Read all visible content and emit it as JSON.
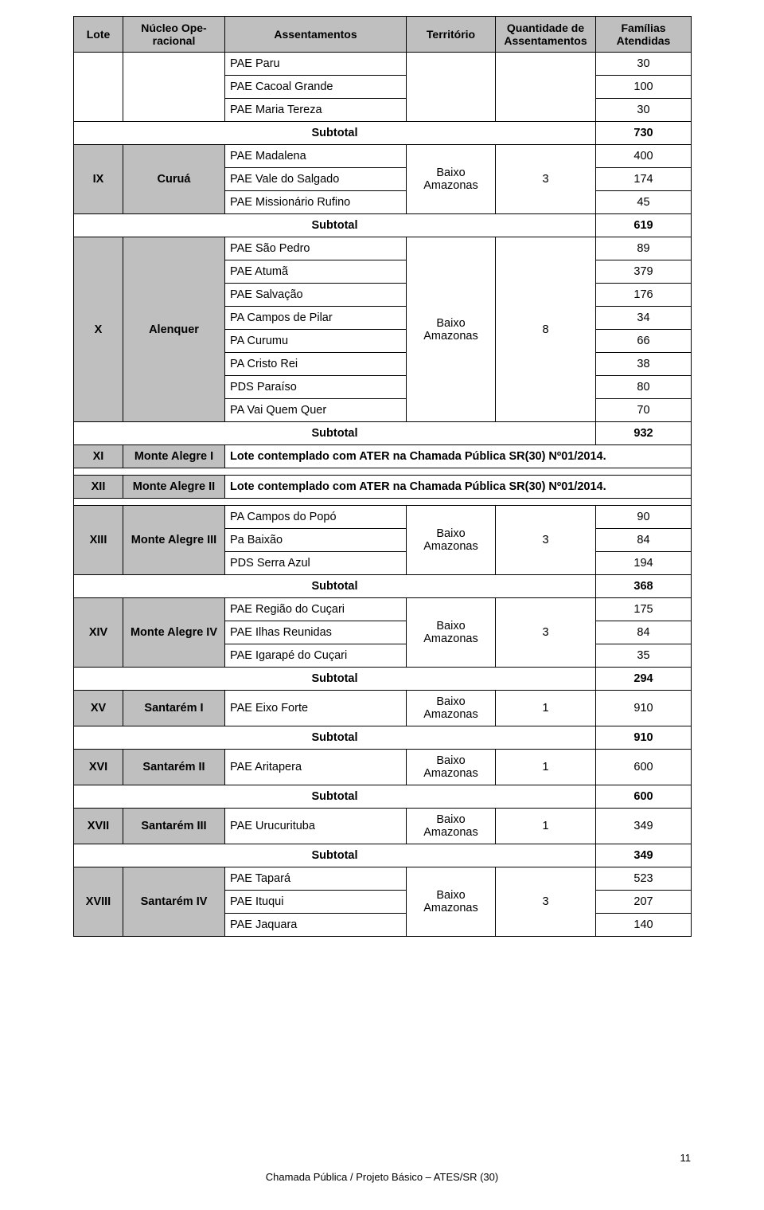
{
  "header": {
    "lote": "Lote",
    "nucleo": "Núcleo Ope-racional",
    "assent": "Assentamentos",
    "territ": "Território",
    "quant": "Quantidade de Assentamentos",
    "familias": "Famílias Atendidas"
  },
  "pre_rows": [
    {
      "name": "PAE Paru",
      "val": "30"
    },
    {
      "name": "PAE Cacoal Grande",
      "val": "100"
    },
    {
      "name": "PAE Maria Tereza",
      "val": "30"
    }
  ],
  "subtotal_label": "Subtotal",
  "sub730": "730",
  "ix": {
    "lote": "IX",
    "nucleo": "Curuá",
    "territory": "Baixo Amazonas",
    "qty": "3",
    "rows": [
      {
        "name": "PAE Madalena",
        "val": "400"
      },
      {
        "name": "PAE Vale do Salgado",
        "val": "174"
      },
      {
        "name": "PAE Missionário Rufino",
        "val": "45"
      }
    ]
  },
  "sub619": "619",
  "x": {
    "lote": "X",
    "nucleo": "Alenquer",
    "territory": "Baixo Amazonas",
    "qty": "8",
    "rows": [
      {
        "name": "PAE São Pedro",
        "val": "89"
      },
      {
        "name": "PAE Atumã",
        "val": "379"
      },
      {
        "name": "PAE Salvação",
        "val": "176"
      },
      {
        "name": "PA Campos de Pilar",
        "val": "34"
      },
      {
        "name": "PA Curumu",
        "val": "66"
      },
      {
        "name": "PA Cristo Rei",
        "val": "38"
      },
      {
        "name": "PDS Paraíso",
        "val": "80"
      },
      {
        "name": "PA Vai Quem Quer",
        "val": "70"
      }
    ]
  },
  "sub932": "932",
  "xi": {
    "lote": "XI",
    "nucleo": "Monte Alegre I",
    "text": "Lote contemplado com ATER na Chamada Pública SR(30) Nº01/2014."
  },
  "xii": {
    "lote": "XII",
    "nucleo": "Monte Alegre II",
    "text": "Lote contemplado com ATER na Chamada Pública SR(30) Nº01/2014."
  },
  "xiii": {
    "lote": "XIII",
    "nucleo": "Monte Alegre III",
    "territory": "Baixo Amazonas",
    "qty": "3",
    "rows": [
      {
        "name": "PA Campos do Popó",
        "val": "90"
      },
      {
        "name": "Pa Baixão",
        "val": "84"
      },
      {
        "name": "PDS Serra Azul",
        "val": "194"
      }
    ]
  },
  "sub368": "368",
  "xiv": {
    "lote": "XIV",
    "nucleo": "Monte Alegre IV",
    "territory": "Baixo Amazonas",
    "qty": "3",
    "rows": [
      {
        "name": "PAE Região do Cuçari",
        "val": "175"
      },
      {
        "name": "PAE Ilhas Reunidas",
        "val": "84"
      },
      {
        "name": "PAE Igarapé do Cuçari",
        "val": "35"
      }
    ]
  },
  "sub294": "294",
  "xv": {
    "lote": "XV",
    "nucleo": "Santarém I",
    "row": {
      "name": "PAE Eixo Forte",
      "val": "910"
    },
    "territory": "Baixo Amazonas",
    "qty": "1"
  },
  "sub910": "910",
  "xvi": {
    "lote": "XVI",
    "nucleo": "Santarém II",
    "row": {
      "name": "PAE Aritapera",
      "val": "600"
    },
    "territory": "Baixo Amazonas",
    "qty": "1"
  },
  "sub600": "600",
  "xvii": {
    "lote": "XVII",
    "nucleo": "Santarém III",
    "row": {
      "name": "PAE Urucurituba",
      "val": "349"
    },
    "territory": "Baixo Amazonas",
    "qty": "1"
  },
  "sub349": "349",
  "xviii": {
    "lote": "XVIII",
    "nucleo": "Santarém IV",
    "territory": "Baixo Amazonas",
    "qty": "3",
    "rows": [
      {
        "name": "PAE Tapará",
        "val": "523"
      },
      {
        "name": "PAE Ituqui",
        "val": "207"
      },
      {
        "name": "PAE Jaquara",
        "val": "140"
      }
    ]
  },
  "footer": "Chamada Pública / Projeto Básico – ATES/SR (30)",
  "pagenum": "11"
}
